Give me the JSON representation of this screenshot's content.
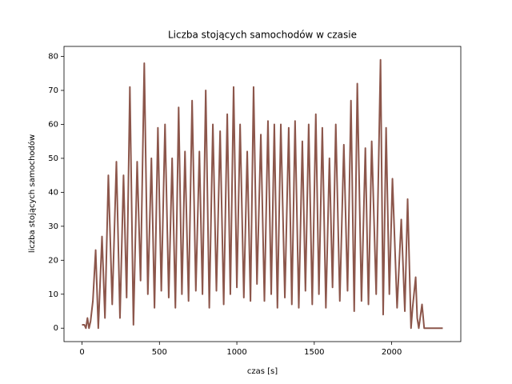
{
  "chart_data": {
    "type": "line",
    "title": "Liczba stojących samochodów w czasie",
    "xlabel": "czas [s]",
    "ylabel": "liczba stojących samochodów",
    "x": [
      0,
      15,
      25,
      35,
      45,
      55,
      70,
      88,
      105,
      129,
      148,
      170,
      195,
      222,
      245,
      268,
      288,
      309,
      332,
      356,
      378,
      402,
      425,
      448,
      468,
      490,
      512,
      536,
      560,
      582,
      603,
      624,
      645,
      665,
      688,
      711,
      735,
      758,
      778,
      799,
      822,
      845,
      868,
      892,
      915,
      938,
      958,
      979,
      1000,
      1021,
      1045,
      1067,
      1088,
      1108,
      1130,
      1155,
      1178,
      1201,
      1222,
      1242,
      1262,
      1284,
      1310,
      1335,
      1355,
      1376,
      1400,
      1423,
      1443,
      1464,
      1487,
      1510,
      1530,
      1552,
      1575,
      1598,
      1618,
      1639,
      1665,
      1691,
      1715,
      1737,
      1758,
      1778,
      1805,
      1830,
      1850,
      1871,
      1900,
      1928,
      1945,
      1964,
      1985,
      2005,
      2035,
      2062,
      2085,
      2103,
      2125,
      2135,
      2155,
      2165,
      2175,
      2196,
      2210,
      2250,
      2330
    ],
    "series": [
      {
        "color": "#8c564b",
        "values": [
          1,
          1,
          0,
          3,
          0,
          2,
          8,
          23,
          0,
          27,
          3,
          45,
          7,
          49,
          3,
          45,
          9,
          71,
          1,
          49,
          14,
          78,
          10,
          50,
          6,
          59,
          11,
          60,
          9,
          50,
          6,
          65,
          10,
          52,
          8,
          67,
          11,
          52,
          10,
          70,
          6,
          60,
          11,
          58,
          7,
          63,
          10,
          71,
          12,
          60,
          9,
          52,
          8,
          71,
          13,
          57,
          8,
          61,
          10,
          60,
          6,
          60,
          9,
          59,
          7,
          61,
          6,
          55,
          11,
          60,
          7,
          63,
          10,
          59,
          6,
          50,
          12,
          60,
          8,
          54,
          11,
          67,
          5,
          72,
          8,
          53,
          7,
          55,
          10,
          79,
          4,
          59,
          10,
          44,
          6,
          32,
          5,
          38,
          0,
          6,
          15,
          3,
          0,
          7,
          0,
          0,
          0
        ]
      }
    ],
    "xlim": [
      -116.5,
      2446.5
    ],
    "ylim": [
      -3.95,
      82.95
    ],
    "xticks": [
      0,
      500,
      1000,
      1500,
      2000
    ],
    "yticks": [
      0,
      10,
      20,
      30,
      40,
      50,
      60,
      70,
      80
    ]
  }
}
